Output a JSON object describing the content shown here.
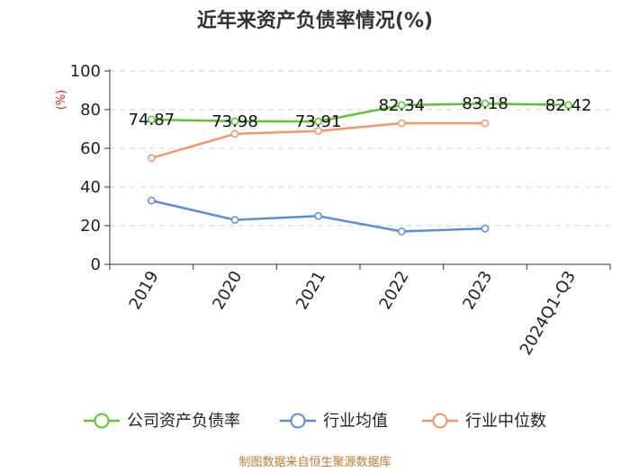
{
  "chart_data": {
    "type": "line",
    "title": "近年来资产负债率情况(%)",
    "ylabel": "(%)",
    "ylim": [
      0,
      100
    ],
    "yticks": [
      0,
      20,
      40,
      60,
      80,
      100
    ],
    "categories": [
      "2019",
      "2020",
      "2021",
      "2022",
      "2023",
      "2024Q1-Q3"
    ],
    "grid": true,
    "legend_position": "bottom",
    "series": [
      {
        "name": "公司资产负债率",
        "color": "#5cc62e",
        "values": [
          74.87,
          73.98,
          73.91,
          82.34,
          83.18,
          82.42
        ],
        "labels": [
          "74.87",
          "73.98",
          "73.91",
          "82.34",
          "83.18",
          "82.42"
        ]
      },
      {
        "name": "行业均值",
        "color": "#5b8ddf",
        "values": [
          33,
          23,
          25,
          17,
          18.5,
          null
        ]
      },
      {
        "name": "行业中位数",
        "color": "#f4956a",
        "values": [
          55,
          67.5,
          69,
          73,
          73,
          null
        ]
      }
    ],
    "source": "制图数据来自恒生聚源数据库"
  }
}
